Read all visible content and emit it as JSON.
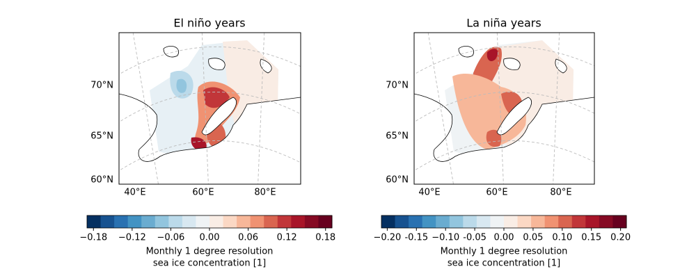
{
  "panels": [
    {
      "title": "El niño years",
      "lat_labels": [
        "70°N",
        "65°N",
        "60°N"
      ],
      "lon_labels": [
        "40°E",
        "60°E",
        "80°E"
      ],
      "colorbar": {
        "lim": [
          -0.19,
          0.19
        ],
        "colors": [
          "#053061",
          "#175290",
          "#2971b1",
          "#4393c3",
          "#6aacd0",
          "#92c5de",
          "#bbdaea",
          "#d8e8f1",
          "#eff3f5",
          "#f9ede5",
          "#fbd8c4",
          "#f7b799",
          "#f09272",
          "#d96550",
          "#c13639",
          "#a81529",
          "#860a24",
          "#67001f"
        ],
        "ticks": [
          {
            "value": -0.18,
            "label": "−0.18"
          },
          {
            "value": -0.12,
            "label": "−0.12"
          },
          {
            "value": -0.06,
            "label": "−0.06"
          },
          {
            "value": 0,
            "label": "0.00"
          },
          0.06,
          0.12,
          0.18
        ],
        "label": [
          "Monthly 1 degree resolution",
          "sea ice concentration [1]"
        ]
      }
    },
    {
      "title": "La niña years",
      "lat_labels": [
        "70°N",
        "65°N",
        "60°N"
      ],
      "lon_labels": [
        "40°E",
        "60°E",
        "80°E"
      ],
      "colorbar": {
        "lim": [
          -0.21,
          0.21
        ],
        "colors": [
          "#053061",
          "#175290",
          "#2971b1",
          "#4393c3",
          "#6aacd0",
          "#92c5de",
          "#bbdaea",
          "#d8e8f1",
          "#eff3f5",
          "#f9ede5",
          "#fbd8c4",
          "#f7b799",
          "#f09272",
          "#d96550",
          "#c13639",
          "#a81529",
          "#860a24",
          "#67001f"
        ],
        "ticks": [
          {
            "value": -0.2,
            "label": "−0.20"
          },
          -0.15,
          {
            "value": -0.1,
            "label": "−0.10"
          },
          -0.05,
          {
            "value": 0,
            "label": "0.00"
          },
          0.05,
          {
            "value": 0.1,
            "label": "0.10"
          },
          0.15,
          {
            "value": 0.2,
            "label": "0.20"
          }
        ],
        "label": [
          "Monthly 1 degree resolution",
          "sea ice concentration [1]"
        ]
      }
    }
  ]
}
